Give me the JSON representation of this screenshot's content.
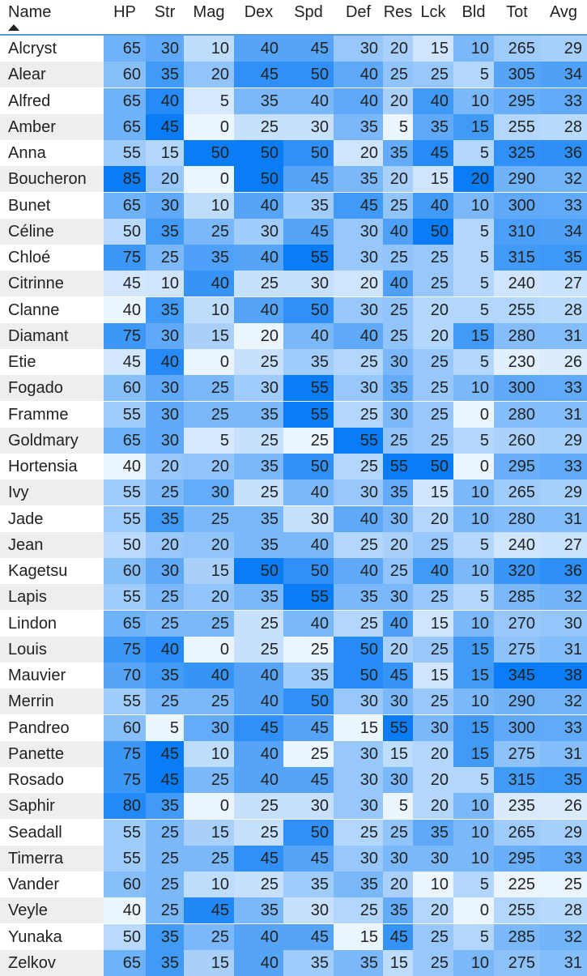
{
  "chart_data": {
    "type": "heatmap",
    "sort_column": "Name",
    "sort_direction": "ascending",
    "color_scale": {
      "low": "#ffffff",
      "high": "#0a7cf5"
    },
    "columns": [
      "Name",
      "HP",
      "Str",
      "Mag",
      "Dex",
      "Spd",
      "Def",
      "Res",
      "Lck",
      "Bld",
      "Tot",
      "Avg"
    ],
    "rows": [
      {
        "name": "Alcryst",
        "values": [
          65,
          30,
          10,
          40,
          45,
          30,
          20,
          15,
          10,
          265,
          29
        ]
      },
      {
        "name": "Alear",
        "values": [
          60,
          35,
          20,
          45,
          50,
          40,
          25,
          25,
          5,
          305,
          34
        ]
      },
      {
        "name": "Alfred",
        "values": [
          65,
          40,
          5,
          35,
          40,
          40,
          20,
          40,
          10,
          295,
          33
        ]
      },
      {
        "name": "Amber",
        "values": [
          65,
          45,
          0,
          25,
          30,
          35,
          5,
          35,
          15,
          255,
          28
        ]
      },
      {
        "name": "Anna",
        "values": [
          55,
          15,
          50,
          50,
          50,
          20,
          35,
          45,
          5,
          325,
          36
        ]
      },
      {
        "name": "Boucheron",
        "values": [
          85,
          20,
          0,
          50,
          45,
          35,
          20,
          15,
          20,
          290,
          32
        ]
      },
      {
        "name": "Bunet",
        "values": [
          65,
          30,
          10,
          40,
          35,
          45,
          25,
          40,
          10,
          300,
          33
        ]
      },
      {
        "name": "Céline",
        "values": [
          50,
          35,
          25,
          30,
          45,
          30,
          40,
          50,
          5,
          310,
          34
        ]
      },
      {
        "name": "Chloé",
        "values": [
          75,
          25,
          35,
          40,
          55,
          30,
          25,
          25,
          5,
          315,
          35
        ]
      },
      {
        "name": "Citrinne",
        "values": [
          45,
          10,
          40,
          25,
          30,
          20,
          40,
          25,
          5,
          240,
          27
        ]
      },
      {
        "name": "Clanne",
        "values": [
          40,
          35,
          10,
          40,
          50,
          30,
          25,
          20,
          5,
          255,
          28
        ]
      },
      {
        "name": "Diamant",
        "values": [
          75,
          30,
          15,
          20,
          40,
          40,
          25,
          20,
          15,
          280,
          31
        ]
      },
      {
        "name": "Etie",
        "values": [
          45,
          40,
          0,
          25,
          35,
          25,
          30,
          25,
          5,
          230,
          26
        ]
      },
      {
        "name": "Fogado",
        "values": [
          60,
          30,
          25,
          30,
          55,
          30,
          35,
          25,
          10,
          300,
          33
        ]
      },
      {
        "name": "Framme",
        "values": [
          55,
          30,
          25,
          35,
          55,
          25,
          30,
          25,
          0,
          280,
          31
        ]
      },
      {
        "name": "Goldmary",
        "values": [
          65,
          30,
          5,
          25,
          25,
          55,
          25,
          25,
          5,
          260,
          29
        ]
      },
      {
        "name": "Hortensia",
        "values": [
          40,
          20,
          20,
          35,
          50,
          25,
          55,
          50,
          0,
          295,
          33
        ]
      },
      {
        "name": "Ivy",
        "values": [
          55,
          25,
          30,
          25,
          40,
          30,
          35,
          15,
          10,
          265,
          29
        ]
      },
      {
        "name": "Jade",
        "values": [
          55,
          35,
          25,
          35,
          30,
          40,
          30,
          20,
          10,
          280,
          31
        ]
      },
      {
        "name": "Jean",
        "values": [
          50,
          20,
          20,
          35,
          40,
          25,
          20,
          25,
          5,
          240,
          27
        ]
      },
      {
        "name": "Kagetsu",
        "values": [
          60,
          30,
          15,
          50,
          50,
          40,
          25,
          40,
          10,
          320,
          36
        ]
      },
      {
        "name": "Lapis",
        "values": [
          55,
          25,
          20,
          35,
          55,
          35,
          30,
          25,
          5,
          285,
          32
        ]
      },
      {
        "name": "Lindon",
        "values": [
          65,
          25,
          25,
          25,
          40,
          25,
          40,
          15,
          10,
          270,
          30
        ]
      },
      {
        "name": "Louis",
        "values": [
          75,
          40,
          0,
          25,
          25,
          50,
          20,
          25,
          15,
          275,
          31
        ]
      },
      {
        "name": "Mauvier",
        "values": [
          70,
          35,
          40,
          40,
          35,
          50,
          45,
          15,
          15,
          345,
          38
        ]
      },
      {
        "name": "Merrin",
        "values": [
          55,
          25,
          25,
          40,
          50,
          30,
          30,
          25,
          10,
          290,
          32
        ]
      },
      {
        "name": "Pandreo",
        "values": [
          60,
          5,
          30,
          45,
          45,
          15,
          55,
          30,
          15,
          300,
          33
        ]
      },
      {
        "name": "Panette",
        "values": [
          75,
          45,
          10,
          40,
          25,
          30,
          15,
          20,
          15,
          275,
          31
        ]
      },
      {
        "name": "Rosado",
        "values": [
          75,
          45,
          25,
          40,
          45,
          30,
          30,
          20,
          5,
          315,
          35
        ]
      },
      {
        "name": "Saphir",
        "values": [
          80,
          35,
          0,
          25,
          30,
          30,
          5,
          20,
          10,
          235,
          26
        ]
      },
      {
        "name": "Seadall",
        "values": [
          55,
          25,
          15,
          25,
          50,
          25,
          25,
          35,
          10,
          265,
          29
        ]
      },
      {
        "name": "Timerra",
        "values": [
          55,
          25,
          25,
          45,
          45,
          30,
          30,
          30,
          10,
          295,
          33
        ]
      },
      {
        "name": "Vander",
        "values": [
          60,
          25,
          10,
          25,
          35,
          35,
          20,
          10,
          5,
          225,
          25
        ]
      },
      {
        "name": "Veyle",
        "values": [
          40,
          25,
          45,
          35,
          30,
          25,
          35,
          20,
          0,
          255,
          28
        ]
      },
      {
        "name": "Yunaka",
        "values": [
          50,
          35,
          25,
          40,
          45,
          15,
          45,
          25,
          5,
          285,
          32
        ]
      },
      {
        "name": "Zelkov",
        "values": [
          65,
          35,
          15,
          40,
          35,
          35,
          15,
          25,
          10,
          275,
          31
        ]
      }
    ]
  }
}
